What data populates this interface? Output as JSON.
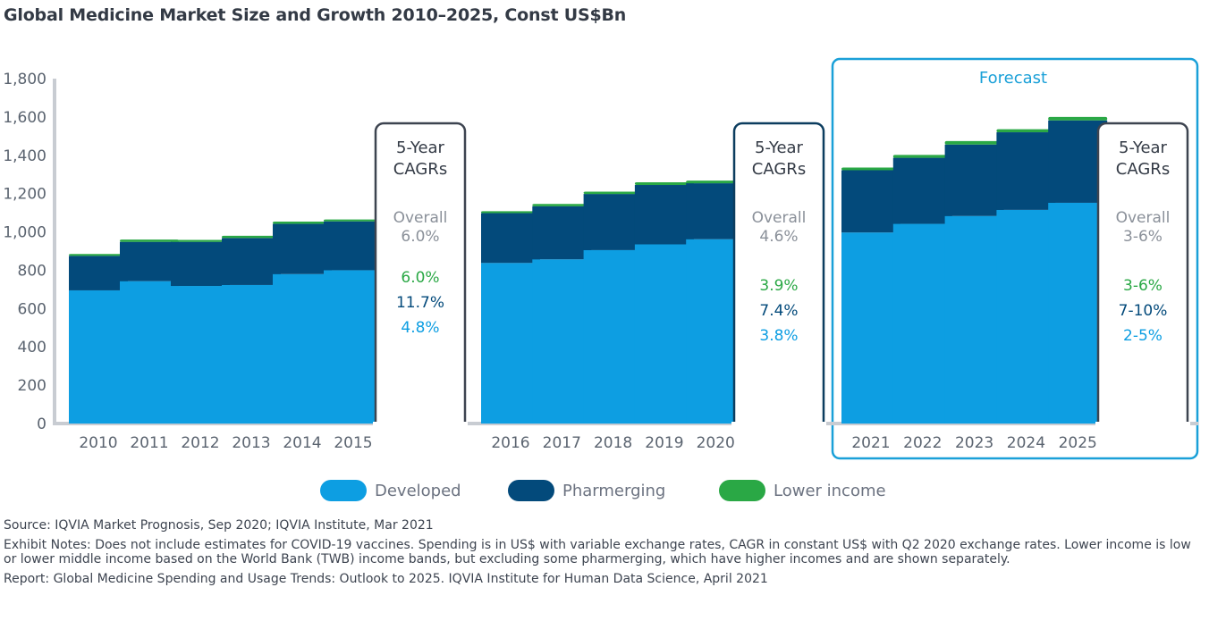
{
  "chart_data": {
    "type": "bar",
    "stacked": true,
    "title": "Global Medicine Market Size and Growth 2010–2025, Const US$Bn",
    "ylim": [
      0,
      1800
    ],
    "yticks": [
      "0",
      "200",
      "400",
      "600",
      "800",
      "1,000",
      "1,200",
      "1,400",
      "1,600",
      "1,800"
    ],
    "groups": [
      {
        "categories": [
          "2010",
          "2011",
          "2012",
          "2013",
          "2014",
          "2015"
        ],
        "series": [
          {
            "name": "Developed",
            "values": [
              695,
              743,
              718,
              723,
              780,
              800
            ]
          },
          {
            "name": "Pharmerging",
            "values": [
              180,
              205,
              230,
              245,
              262,
              255
            ]
          },
          {
            "name": "Lower income",
            "values": [
              10,
              12,
              10,
              12,
              12,
              10
            ]
          }
        ],
        "cagr": {
          "header_line1": "5-Year",
          "header_line2": "CAGRs",
          "overall_label": "Overall",
          "overall_value": "6.0%",
          "lower_income": "6.0%",
          "pharmerging": "11.7%",
          "developed": "4.8%"
        }
      },
      {
        "categories": [
          "2016",
          "2017",
          "2018",
          "2019",
          "2020"
        ],
        "series": [
          {
            "name": "Developed",
            "values": [
              838,
              857,
              905,
              935,
              962
            ]
          },
          {
            "name": "Pharmerging",
            "values": [
              260,
              277,
              293,
              310,
              292
            ]
          },
          {
            "name": "Lower income",
            "values": [
              10,
              12,
              12,
              14,
              14
            ]
          }
        ],
        "cagr": {
          "header_line1": "5-Year",
          "header_line2": "CAGRs",
          "overall_label": "Overall",
          "overall_value": "4.6%",
          "lower_income": "3.9%",
          "pharmerging": "7.4%",
          "developed": "3.8%"
        }
      },
      {
        "categories": [
          "2021",
          "2022",
          "2023",
          "2024",
          "2025"
        ],
        "series": [
          {
            "name": "Developed",
            "values": [
              997,
              1042,
              1083,
              1115,
              1152
            ]
          },
          {
            "name": "Pharmerging",
            "values": [
              325,
              345,
              373,
              405,
              430
            ]
          },
          {
            "name": "Lower income",
            "values": [
              14,
              15,
              18,
              16,
              18
            ]
          }
        ],
        "cagr": {
          "header_line1": "5-Year",
          "header_line2": "CAGRs",
          "overall_label": "Overall",
          "overall_value": "3-6%",
          "lower_income": "3-6%",
          "pharmerging": "7-10%",
          "developed": "2-5%"
        }
      }
    ],
    "forecast_label": "Forecast",
    "legend": [
      {
        "name": "Developed",
        "color": "#0d9ee2"
      },
      {
        "name": "Pharmerging",
        "color": "#034a7b"
      },
      {
        "name": "Lower income",
        "color": "#2aa845"
      }
    ],
    "legend_position": "bottom-center",
    "grid": false
  },
  "colors": {
    "developed": "#0d9ee2",
    "pharmerging": "#034a7b",
    "lower_income": "#2aa845",
    "forecast_border": "#1aa0d8",
    "box_border_dark": "#3d4450",
    "box_border_navy": "#0c3d5f",
    "axis": "#c8ccd2"
  },
  "notes": {
    "source": "Source: IQVIA Market Prognosis, Sep 2020; IQVIA Institute, Mar 2021",
    "exhibit": "Exhibit Notes: Does not include estimates for COVID-19 vaccines. Spending is in US$ with variable exchange rates, CAGR in constant US$ with Q2 2020 exchange rates. Lower income is low or lower middle income based on the World Bank (TWB) income bands, but excluding some pharmerging, which have higher incomes and are shown separately.",
    "report": "Report: Global Medicine Spending and Usage Trends: Outlook to 2025. IQVIA Institute for Human Data Science, April 2021"
  }
}
